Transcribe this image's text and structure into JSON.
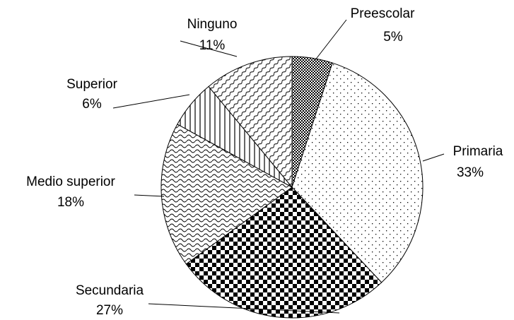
{
  "chart_data": {
    "type": "pie",
    "categories": [
      "Preescolar",
      "Primaria",
      "Secundaria",
      "Medio superior",
      "Superior",
      "Ninguno"
    ],
    "values": [
      5,
      33,
      27,
      18,
      6,
      11
    ],
    "value_labels": [
      "5%",
      "33%",
      "27%",
      "18%",
      "6%",
      "11%"
    ]
  }
}
